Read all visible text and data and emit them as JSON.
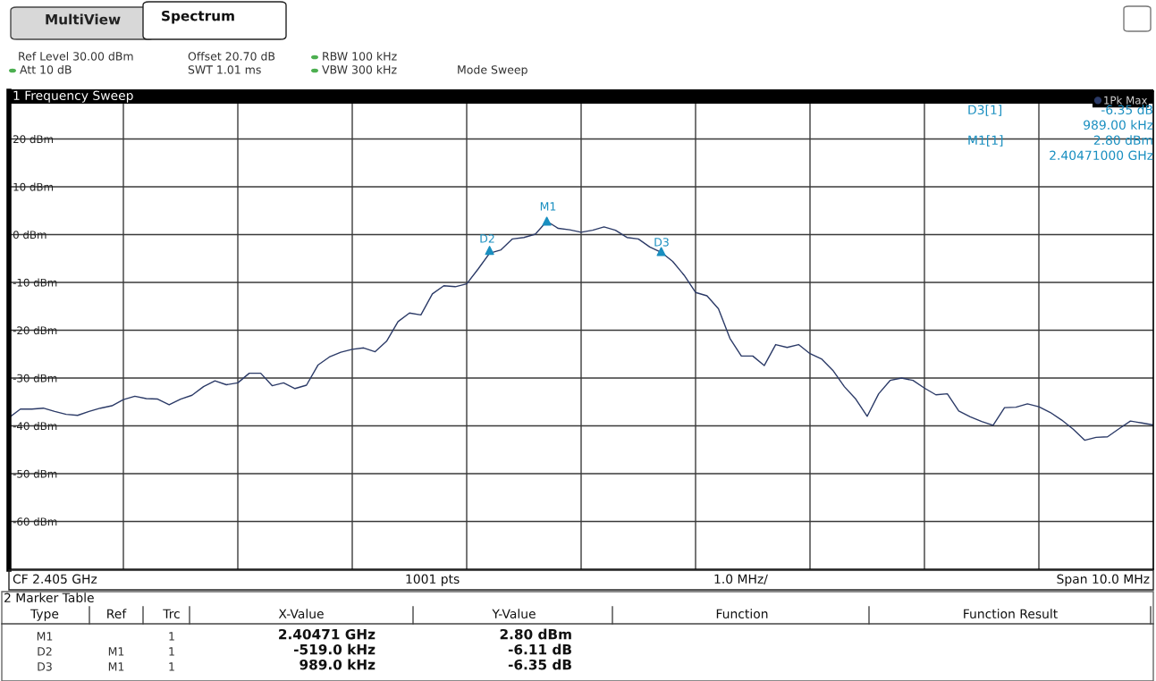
{
  "chart_data": {
    "type": "line",
    "title": "1 Frequency Sweep",
    "annotations": [
      "MultiView",
      "Spectrum",
      "Ref Level 30.00 dBm",
      "Offset 20.70 dB",
      "RBW 100 kHz",
      "Att 10 dB",
      "SWT 1.01 ms",
      "VBW 300 kHz",
      "Mode Sweep",
      "D3[1]",
      "-6.35 dB",
      "989.00 kHz",
      "M1[1]",
      "2.80 dBm",
      "2.40471000 GHz",
      "CF 2.405 GHz",
      "1001 pts",
      "1.0 MHz/",
      "Span 10.0 MHz",
      "2 Marker Table",
      "Type",
      "Ref",
      "Trc",
      "X-Value",
      "Y-Value",
      "Function",
      "Function Result",
      "M1",
      "1",
      "2.40471 GHz",
      "2.80 dBm",
      "D2",
      "M1",
      "1",
      "-519.0 kHz",
      "-6.11 dB",
      "D3",
      "M1",
      "1",
      "989.0 kHz",
      "-6.35 dB",
      "M1",
      "D2",
      "D3"
    ],
    "categories": [
      null,
      null,
      null,
      null,
      null,
      null,
      null,
      null,
      null,
      null,
      null,
      null,
      null,
      null,
      null,
      null,
      null,
      null,
      null,
      null,
      null,
      null,
      null,
      null,
      null,
      null,
      null,
      null,
      null,
      null,
      null,
      null,
      null,
      null,
      null,
      null,
      null,
      null,
      null,
      null,
      null,
      null,
      null,
      null,
      null,
      null,
      null,
      null,
      null,
      null,
      null,
      null,
      null,
      null,
      null,
      null,
      null,
      null,
      null,
      null,
      null,
      null,
      null,
      null,
      null,
      null,
      null,
      null,
      null,
      null,
      null,
      null,
      null,
      null,
      null,
      null,
      null,
      null,
      null,
      null,
      null,
      null,
      null,
      null,
      null,
      null,
      null,
      null,
      null,
      null,
      null,
      null,
      null,
      null,
      null,
      null,
      null,
      null,
      null,
      null,
      null
    ],
    "series": [
      {
        "name": "1Pk Max",
        "color": "#2b3a67",
        "values": [
          -38.3,
          -36.5,
          -36.5,
          -36.3,
          -37.0,
          -37.6,
          -37.8,
          -37.0,
          -36.3,
          -35.8,
          -34.5,
          -33.8,
          -34.3,
          -34.4,
          -35.6,
          -34.4,
          -33.6,
          -31.8,
          -30.6,
          -31.4,
          -31.0,
          -29.0,
          -29.0,
          -31.6,
          -31.0,
          -32.2,
          -31.5,
          -27.3,
          -25.6,
          -24.6,
          -24.0,
          -23.7,
          -24.5,
          -22.3,
          -18.2,
          -16.4,
          -16.8,
          -12.4,
          -10.7,
          -10.9,
          -10.3,
          -7.2,
          -3.9,
          -3.2,
          -0.9,
          -0.6,
          0.1,
          2.8,
          1.3,
          1.0,
          0.5,
          0.9,
          1.6,
          0.9,
          -0.6,
          -0.9,
          -2.6,
          -3.7,
          -5.6,
          -8.5,
          -12.1,
          -12.8,
          -15.5,
          -21.7,
          -25.4,
          -25.4,
          -27.4,
          -23.0,
          -23.6,
          -23.0,
          -24.9,
          -26.0,
          -28.4,
          -31.8,
          -34.4,
          -38.0,
          -33.3,
          -30.5,
          -30.0,
          -30.5,
          -32.1,
          -33.5,
          -33.3,
          -36.9,
          -38.1,
          -39.1,
          -39.9,
          -36.2,
          -36.1,
          -35.4,
          -36.0,
          -37.2,
          -38.8,
          -40.7,
          -43.0,
          -42.4,
          -42.3,
          -40.6,
          -39.0,
          -39.4,
          -39.8
        ]
      },
      {
        "type": "scatter",
        "color": "#1a8fc0",
        "marker": "triangle",
        "values": [
          null,
          null,
          null,
          null,
          null,
          null,
          null,
          null,
          null,
          null,
          null,
          null,
          null,
          null,
          null,
          null,
          null,
          null,
          null,
          null,
          null,
          null,
          null,
          null,
          null,
          null,
          null,
          null,
          null,
          null,
          null,
          null,
          null,
          null,
          null,
          null,
          null,
          null,
          null,
          null,
          null,
          null,
          -3.31,
          null,
          null,
          null,
          null,
          2.8,
          null,
          null,
          null,
          null,
          null,
          null,
          null,
          null,
          null,
          -3.55,
          null,
          null,
          null,
          null,
          null,
          null,
          null,
          null,
          null,
          null,
          null,
          null,
          null,
          null,
          null,
          null,
          null,
          null,
          null,
          null,
          null,
          null,
          null,
          null,
          null,
          null,
          null,
          null,
          null,
          null,
          null,
          null,
          null,
          null,
          null,
          null,
          null,
          null,
          null,
          null,
          null,
          null,
          null
        ]
      }
    ],
    "ylim": [
      -70,
      30
    ],
    "yticks": [
      {
        "value": 20,
        "label": "20 dBm"
      },
      {
        "value": 10,
        "label": "10 dBm"
      },
      {
        "value": 0,
        "label": "0 dBm"
      },
      {
        "value": -10,
        "label": "-10 dBm"
      },
      {
        "value": -20,
        "label": "-20 dBm"
      },
      {
        "value": -30,
        "label": "-30 dBm"
      },
      {
        "value": -40,
        "label": "-40 dBm"
      },
      {
        "value": -50,
        "label": "-50 dBm"
      },
      {
        "value": -60,
        "label": "-60 dBm"
      }
    ],
    "grid": true,
    "legend": "top right",
    "marker": "none",
    "line_style": "solid"
  }
}
